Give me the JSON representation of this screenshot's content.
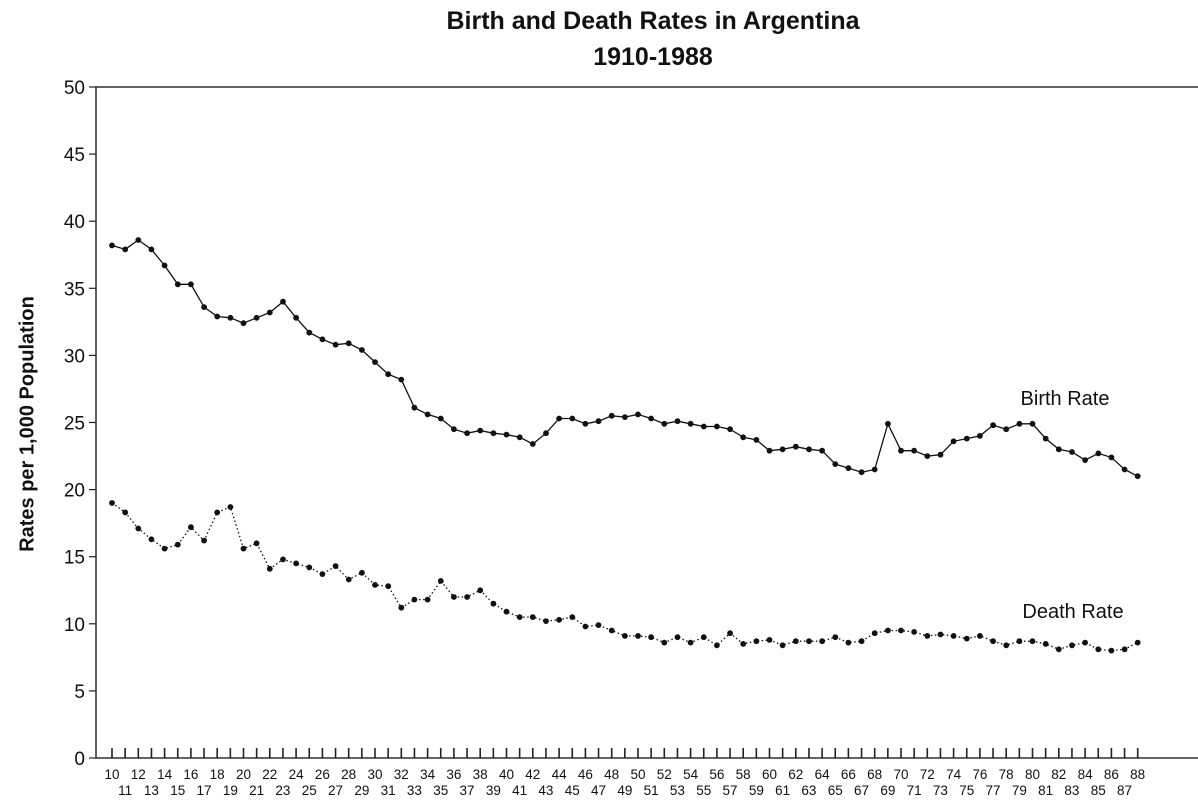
{
  "chart_data": {
    "type": "line",
    "title": "Birth and Death Rates in Argentina",
    "subtitle": "1910-1988",
    "xlabel": "",
    "ylabel": "Rates per 1,000 Population",
    "ylim": [
      0,
      50
    ],
    "yticks": [
      0,
      5,
      10,
      15,
      20,
      25,
      30,
      35,
      40,
      45,
      50
    ],
    "xlim": [
      1910,
      1988
    ],
    "xtick_labels": [
      "10",
      "11",
      "12",
      "13",
      "14",
      "15",
      "16",
      "17",
      "18",
      "19",
      "20",
      "21",
      "22",
      "23",
      "24",
      "25",
      "26",
      "27",
      "28",
      "29",
      "30",
      "31",
      "32",
      "33",
      "34",
      "35",
      "36",
      "37",
      "38",
      "39",
      "40",
      "41",
      "42",
      "43",
      "44",
      "45",
      "46",
      "47",
      "48",
      "49",
      "50",
      "51",
      "52",
      "53",
      "54",
      "55",
      "56",
      "57",
      "58",
      "59",
      "60",
      "61",
      "62",
      "63",
      "64",
      "65",
      "66",
      "67",
      "68",
      "69",
      "70",
      "71",
      "72",
      "73",
      "74",
      "75",
      "76",
      "77",
      "78",
      "79",
      "80",
      "81",
      "82",
      "83",
      "84",
      "85",
      "86",
      "87",
      "88"
    ],
    "grid": false,
    "series": [
      {
        "name": "Birth Rate",
        "line": "solid",
        "x": [
          1910,
          1911,
          1912,
          1913,
          1914,
          1915,
          1916,
          1917,
          1918,
          1919,
          1920,
          1921,
          1922,
          1923,
          1924,
          1925,
          1926,
          1927,
          1928,
          1929,
          1930,
          1931,
          1932,
          1933,
          1934,
          1935,
          1936,
          1937,
          1938,
          1939,
          1940,
          1941,
          1942,
          1943,
          1944,
          1945,
          1946,
          1947,
          1948,
          1949,
          1950,
          1951,
          1952,
          1953,
          1954,
          1955,
          1956,
          1957,
          1958,
          1959,
          1960,
          1961,
          1962,
          1963,
          1964,
          1965,
          1966,
          1967,
          1968,
          1969,
          1970,
          1971,
          1972,
          1973,
          1974,
          1975,
          1976,
          1977,
          1978,
          1979,
          1980,
          1981,
          1982,
          1983,
          1984,
          1985,
          1986,
          1987,
          1988
        ],
        "values": [
          38.2,
          37.9,
          38.6,
          37.9,
          36.7,
          35.3,
          35.3,
          33.6,
          32.9,
          32.8,
          32.4,
          32.8,
          33.2,
          34.0,
          32.8,
          31.7,
          31.2,
          30.8,
          30.9,
          30.4,
          29.5,
          28.6,
          28.2,
          26.1,
          25.6,
          25.3,
          24.5,
          24.2,
          24.4,
          24.2,
          24.1,
          23.9,
          23.4,
          24.2,
          25.3,
          25.3,
          24.9,
          25.1,
          25.5,
          25.4,
          25.6,
          25.3,
          24.9,
          25.1,
          24.9,
          24.7,
          24.7,
          24.5,
          23.9,
          23.7,
          22.9,
          23.0,
          23.2,
          23.0,
          22.9,
          21.9,
          21.6,
          21.3,
          21.5,
          24.9,
          22.9,
          22.9,
          22.5,
          22.6,
          23.6,
          23.8,
          24.0,
          24.8,
          24.5,
          24.9,
          24.9,
          23.8,
          23.0,
          22.8,
          22.2,
          22.7,
          22.4,
          21.5,
          21.0
        ]
      },
      {
        "name": "Death Rate",
        "line": "dotted",
        "x": [
          1910,
          1911,
          1912,
          1913,
          1914,
          1915,
          1916,
          1917,
          1918,
          1919,
          1920,
          1921,
          1922,
          1923,
          1924,
          1925,
          1926,
          1927,
          1928,
          1929,
          1930,
          1931,
          1932,
          1933,
          1934,
          1935,
          1936,
          1937,
          1938,
          1939,
          1940,
          1941,
          1942,
          1943,
          1944,
          1945,
          1946,
          1947,
          1948,
          1949,
          1950,
          1951,
          1952,
          1953,
          1954,
          1955,
          1956,
          1957,
          1958,
          1959,
          1960,
          1961,
          1962,
          1963,
          1964,
          1965,
          1966,
          1967,
          1968,
          1969,
          1970,
          1971,
          1972,
          1973,
          1974,
          1975,
          1976,
          1977,
          1978,
          1979,
          1980,
          1981,
          1982,
          1983,
          1984,
          1985,
          1986,
          1987,
          1988
        ],
        "values": [
          19.0,
          18.3,
          17.1,
          16.3,
          15.6,
          15.9,
          17.2,
          16.2,
          18.3,
          18.7,
          15.6,
          16.0,
          14.1,
          14.8,
          14.5,
          14.2,
          13.7,
          14.3,
          13.3,
          13.8,
          12.9,
          12.8,
          11.2,
          11.8,
          11.8,
          13.2,
          12.0,
          12.0,
          12.5,
          11.5,
          10.9,
          10.5,
          10.5,
          10.2,
          10.3,
          10.5,
          9.8,
          9.9,
          9.5,
          9.1,
          9.1,
          9.0,
          8.6,
          9.0,
          8.6,
          9.0,
          8.4,
          9.3,
          8.5,
          8.7,
          8.8,
          8.4,
          8.7,
          8.7,
          8.7,
          9.0,
          8.6,
          8.7,
          9.3,
          9.5,
          9.5,
          9.4,
          9.1,
          9.2,
          9.1,
          8.9,
          9.1,
          8.7,
          8.4,
          8.7,
          8.7,
          8.5,
          8.1,
          8.4,
          8.6,
          8.1,
          8.0,
          8.1,
          8.6
        ]
      }
    ]
  }
}
